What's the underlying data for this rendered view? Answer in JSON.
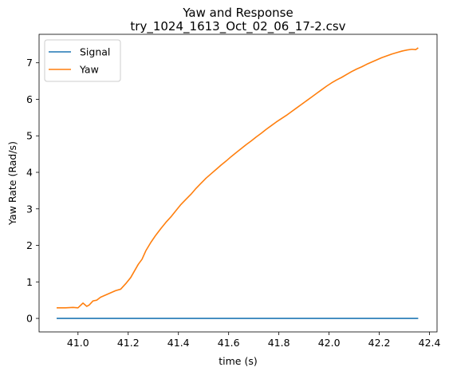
{
  "chart_data": {
    "type": "line",
    "title": "Yaw and Response",
    "subtitle": "try_1024_1613_Oct_02_06_17-2.csv",
    "xlabel": "time (s)",
    "ylabel": "Yaw Rate (Rad/s)",
    "xlim": [
      40.845,
      42.43
    ],
    "ylim": [
      -0.37,
      7.78
    ],
    "x_ticks": [
      41.0,
      41.2,
      41.4,
      41.6,
      41.8,
      42.0,
      42.2,
      42.4
    ],
    "x_tick_labels": [
      "41.0",
      "41.2",
      "41.4",
      "41.6",
      "41.8",
      "42.0",
      "42.2",
      "42.4"
    ],
    "y_ticks": [
      0,
      1,
      2,
      3,
      4,
      5,
      6,
      7
    ],
    "y_tick_labels": [
      "0",
      "1",
      "2",
      "3",
      "4",
      "5",
      "6",
      "7"
    ],
    "grid": false,
    "legend_position": "top-left",
    "series": [
      {
        "name": "Signal",
        "color": "#1f77b4",
        "x": [
          40.915,
          42.355
        ],
        "y": [
          0.0,
          0.0
        ]
      },
      {
        "name": "Yaw",
        "color": "#ff7f0e",
        "x": [
          40.915,
          40.95,
          40.98,
          41.0,
          41.02,
          41.035,
          41.045,
          41.06,
          41.075,
          41.09,
          41.11,
          41.13,
          41.15,
          41.17,
          41.19,
          41.21,
          41.225,
          41.24,
          41.255,
          41.27,
          41.29,
          41.31,
          41.33,
          41.35,
          41.37,
          41.39,
          41.41,
          41.43,
          41.45,
          41.47,
          41.49,
          41.51,
          41.53,
          41.55,
          41.57,
          41.59,
          41.61,
          41.63,
          41.65,
          41.67,
          41.69,
          41.71,
          41.73,
          41.75,
          41.77,
          41.79,
          41.81,
          41.83,
          41.85,
          41.87,
          41.89,
          41.91,
          41.93,
          41.95,
          41.97,
          41.99,
          42.01,
          42.03,
          42.05,
          42.07,
          42.09,
          42.11,
          42.13,
          42.15,
          42.17,
          42.19,
          42.21,
          42.23,
          42.25,
          42.27,
          42.29,
          42.31,
          42.33,
          42.345,
          42.355
        ],
        "y": [
          0.29,
          0.29,
          0.3,
          0.29,
          0.42,
          0.33,
          0.37,
          0.48,
          0.5,
          0.58,
          0.64,
          0.7,
          0.76,
          0.8,
          0.95,
          1.12,
          1.3,
          1.48,
          1.62,
          1.85,
          2.08,
          2.28,
          2.46,
          2.63,
          2.78,
          2.95,
          3.12,
          3.26,
          3.4,
          3.56,
          3.7,
          3.84,
          3.96,
          4.08,
          4.2,
          4.31,
          4.43,
          4.54,
          4.65,
          4.76,
          4.86,
          4.97,
          5.07,
          5.18,
          5.28,
          5.38,
          5.47,
          5.56,
          5.66,
          5.76,
          5.86,
          5.96,
          6.06,
          6.16,
          6.26,
          6.36,
          6.45,
          6.53,
          6.6,
          6.68,
          6.76,
          6.83,
          6.89,
          6.96,
          7.02,
          7.08,
          7.14,
          7.19,
          7.24,
          7.28,
          7.32,
          7.35,
          7.37,
          7.36,
          7.41
        ]
      }
    ]
  }
}
